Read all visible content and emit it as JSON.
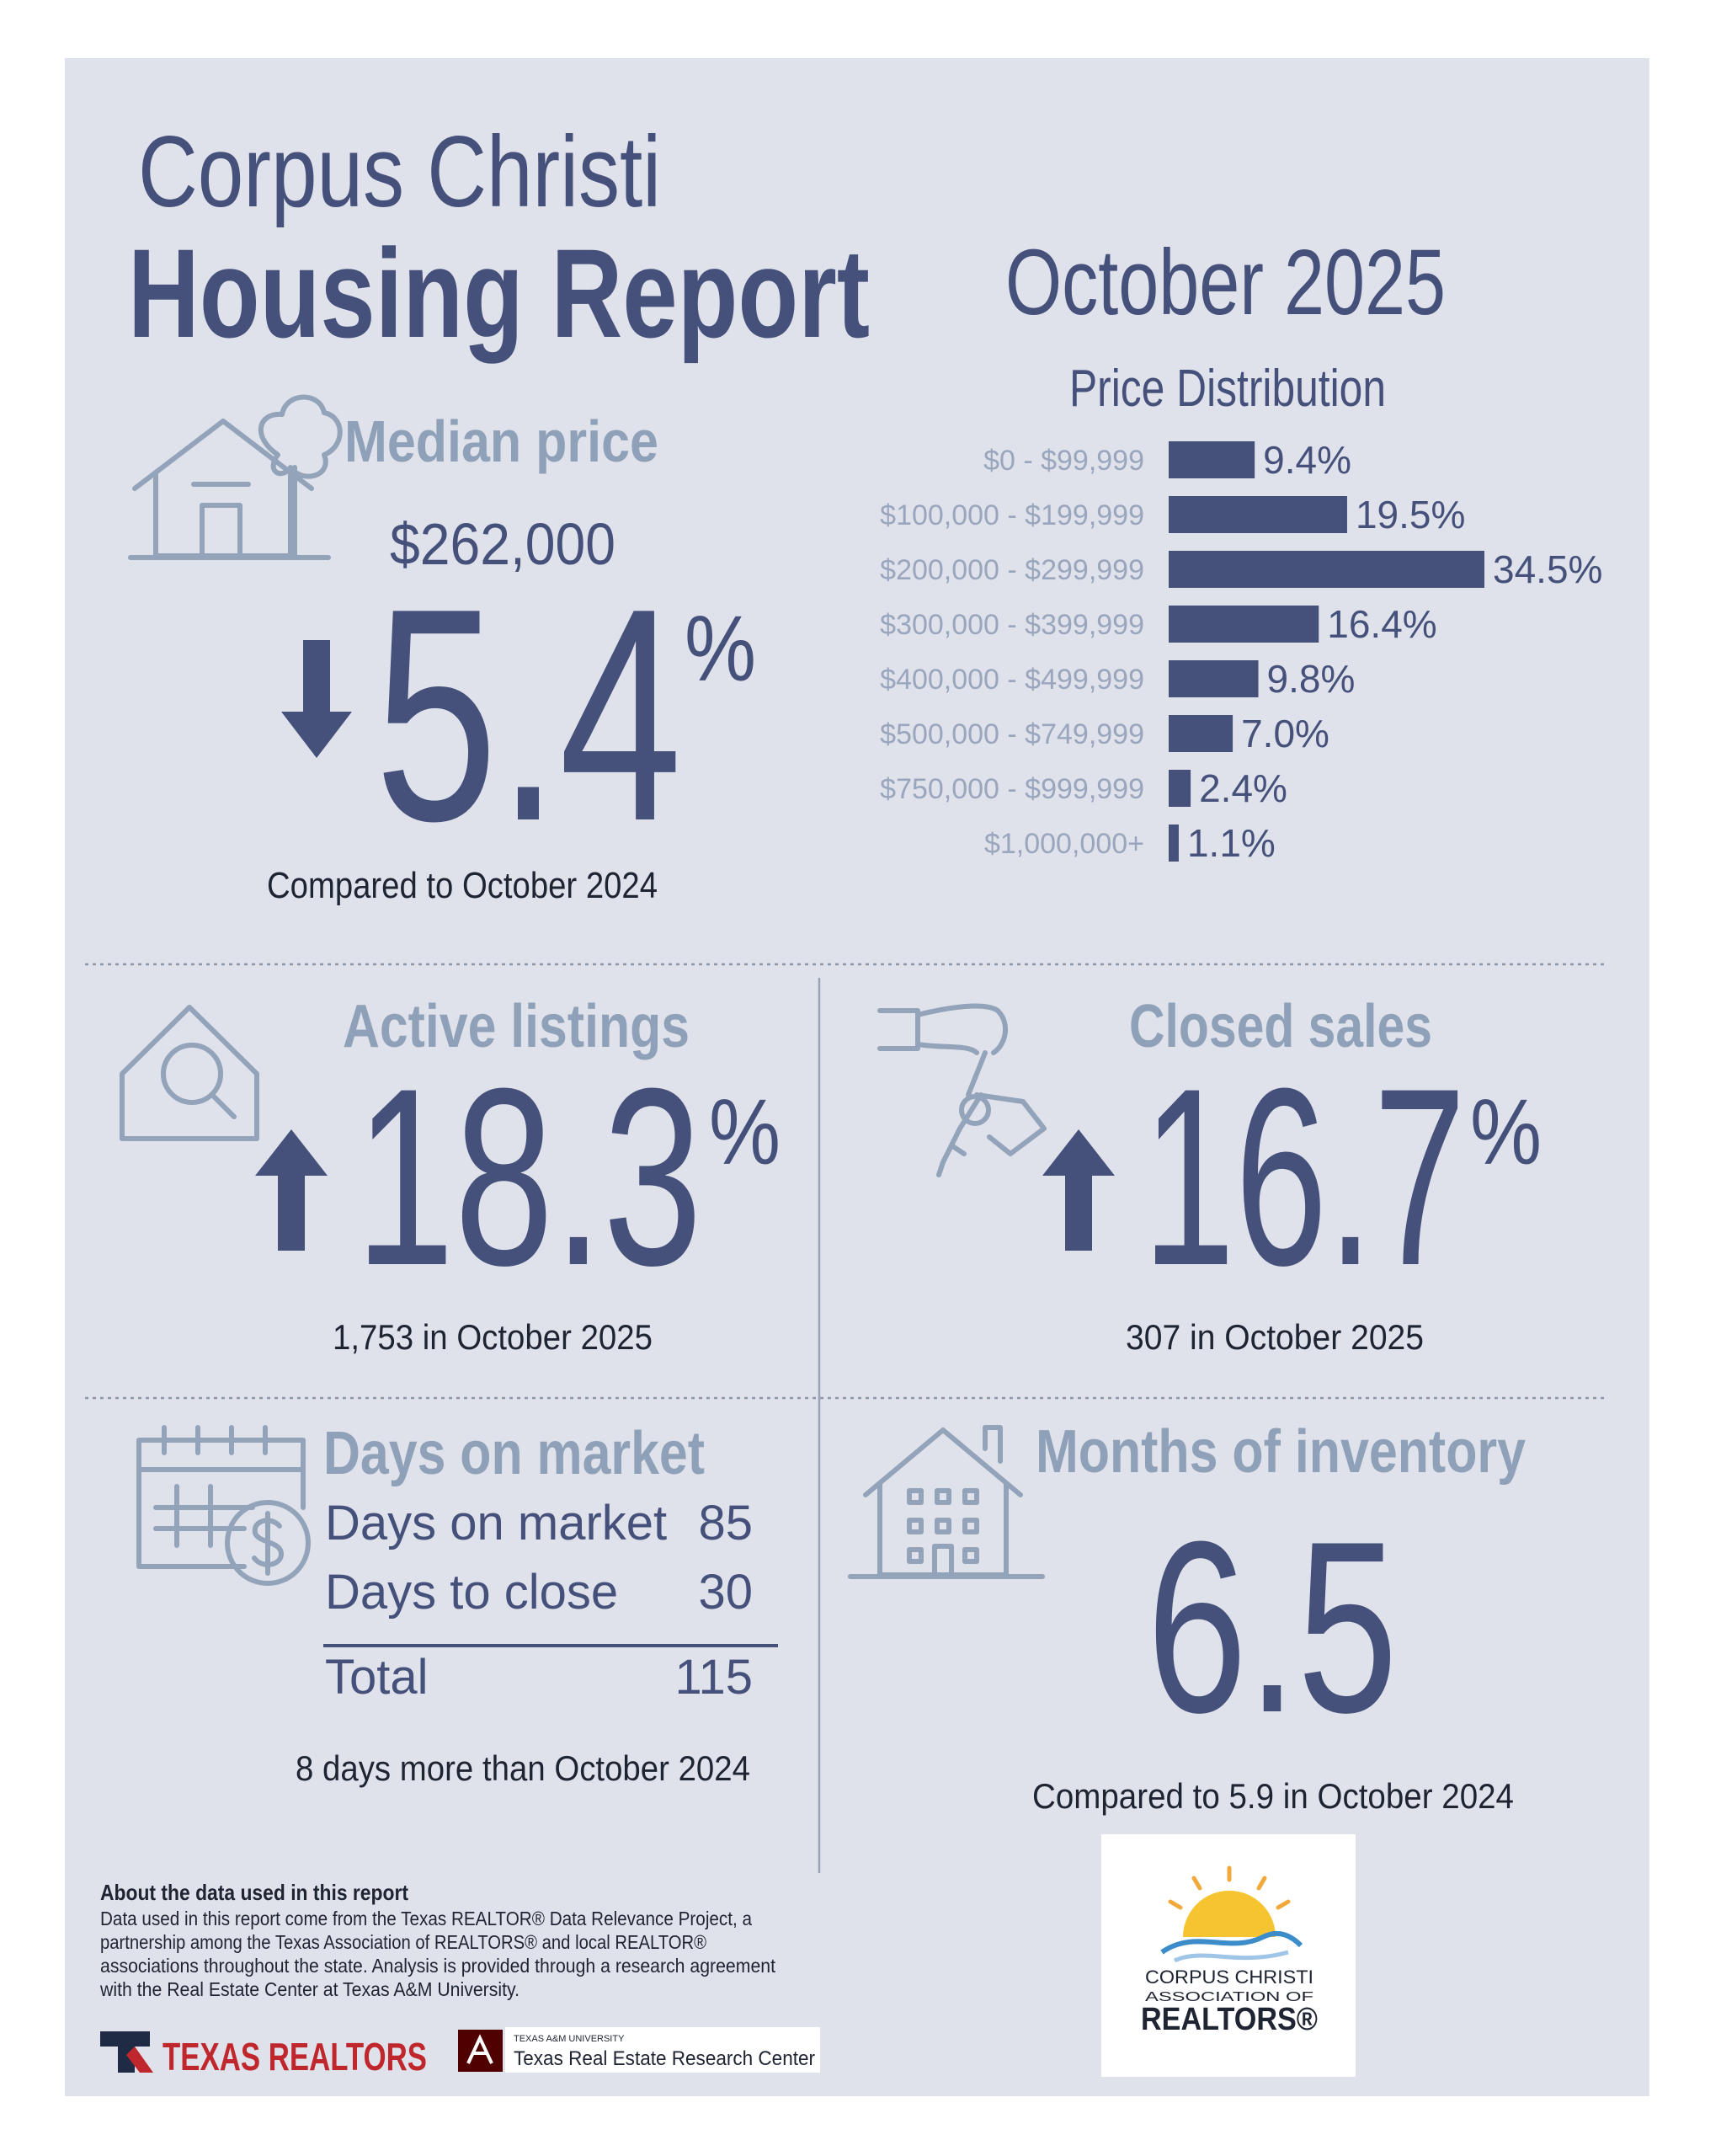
{
  "header": {
    "city": "Corpus Christi",
    "title": "Housing Report",
    "period": "October 2025"
  },
  "median_price": {
    "title": "Median price",
    "price": "$262,000",
    "change": "5.4",
    "unit": "%",
    "note": "Compared to October 2024"
  },
  "chart_data": {
    "type": "bar",
    "title": "Price Distribution",
    "categories": [
      "$0 - $99,999",
      "$100,000 - $199,999",
      "$200,000 - $299,999",
      "$300,000 - $399,999",
      "$400,000 - $499,999",
      "$500,000 - $749,999",
      "$750,000 - $999,999",
      "$1,000,000+"
    ],
    "values": [
      9.4,
      19.5,
      34.5,
      16.4,
      9.8,
      7.0,
      2.4,
      1.1
    ],
    "value_labels": [
      "9.4%",
      "19.5%",
      "34.5%",
      "16.4%",
      "9.8%",
      "7.0%",
      "2.4%",
      "1.1%"
    ],
    "color": "#45517a"
  },
  "active_listings": {
    "title": "Active listings",
    "change": "18.3",
    "unit": "%",
    "note": "1,753 in October 2025"
  },
  "closed_sales": {
    "title": "Closed sales",
    "change": "16.7",
    "unit": "%",
    "note": "307 in October 2025"
  },
  "days_on_market": {
    "title": "Days on market",
    "rows": [
      [
        "Days on market",
        "85"
      ],
      [
        "Days to close",
        "30"
      ],
      [
        "Total",
        "115"
      ]
    ],
    "note": "8 days more than October 2024"
  },
  "months_of_inventory": {
    "title": "Months of inventory",
    "value": "6.5",
    "note": "Compared to 5.9 in October 2024"
  },
  "footer": {
    "about_title": "About the data used in this report",
    "about_lines": [
      "Data used in this report come from the Texas REALTOR® Data Relevance Project, a",
      "partnership among the Texas Association of REALTORS® and local REALTOR®",
      "associations throughout the state. Analysis is provided through a research agreement",
      "with the Real Estate Center at Texas A&M University."
    ],
    "texas_realtors": "TEXAS REALTORS",
    "tamu_small": "TEXAS A&M UNIVERSITY",
    "tamu_center": "Texas Real Estate Research Center",
    "ccar_line1": "CORPUS CHRISTI",
    "ccar_line2": "ASSOCIATION OF",
    "ccar_line3": "REALTORS®"
  }
}
